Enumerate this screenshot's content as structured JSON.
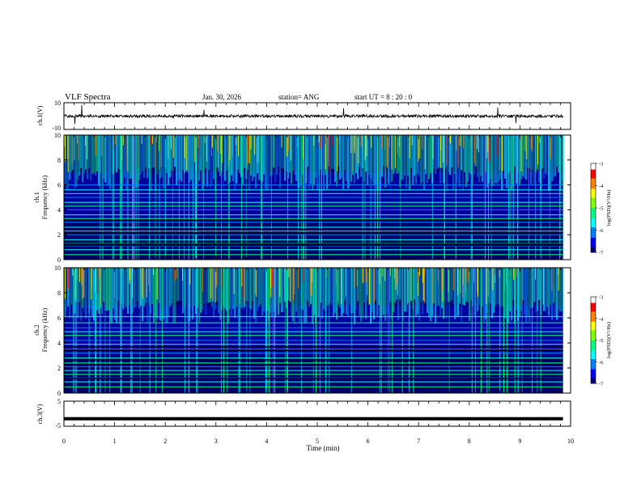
{
  "header": {
    "title": "VLF Spectra",
    "date": "Jan. 30, 2026",
    "station": "station= ANG",
    "start": "start  UT  =   8  : 20 : 0"
  },
  "colors": {
    "background": "#ffffff",
    "axis": "#000000",
    "spectrogram_floor": "#000033",
    "colormap": [
      "#000080",
      "#0000ff",
      "#0080ff",
      "#00ffff",
      "#00ff80",
      "#80ff00",
      "#ffff00",
      "#ff8000",
      "#ff0000",
      "#ffffff"
    ]
  },
  "chart_data": [
    {
      "type": "line",
      "name": "ch1-waveform",
      "ylabel": "ch.1(V)",
      "ylim": [
        -10,
        10
      ],
      "yticks": [
        "10",
        "-10"
      ],
      "baseline": 0,
      "note": "dense noise trace around 0 V with occasional spikes"
    },
    {
      "type": "heatmap",
      "name": "ch1-spectrogram",
      "ylabel": "ch.1 Frequency (kHz)",
      "ylim": [
        0,
        10
      ],
      "yticks": [
        "0",
        "2",
        "4",
        "6",
        "8",
        "10"
      ],
      "colorbar": {
        "label": "log(PSD)(V²/Hz)",
        "range": [
          -7,
          -3
        ],
        "ticks": [
          "-3",
          "-4",
          "-5",
          "-6",
          "-7"
        ]
      },
      "lines_khz": [
        0.4,
        0.8,
        1.1,
        1.3,
        1.6,
        2.0,
        2.3,
        2.6,
        3.0,
        3.3,
        3.6,
        4.0,
        4.3,
        4.6,
        5.0,
        5.3,
        5.6,
        6.0
      ],
      "seed": 7
    },
    {
      "type": "heatmap",
      "name": "ch2-spectrogram",
      "ylabel": "ch.2 Frequency (kHz)",
      "ylim": [
        0,
        10
      ],
      "yticks": [
        "0",
        "2",
        "4",
        "6",
        "8",
        "10"
      ],
      "colorbar": {
        "label": "log(PSD)(V²/Hz)",
        "range": [
          -7,
          -3
        ],
        "ticks": [
          "-3",
          "-4",
          "-5",
          "-6",
          "-7"
        ]
      },
      "lines_khz": [
        0.5,
        0.9,
        1.2,
        1.5,
        1.8,
        2.1,
        2.4,
        2.8,
        3.2,
        3.5,
        3.9,
        4.2,
        4.6,
        4.9,
        5.2,
        5.6,
        6.1
      ],
      "seed": 23
    },
    {
      "type": "line",
      "name": "ch3-waveform",
      "ylabel": "ch.3(V)",
      "ylim": [
        -5,
        5
      ],
      "yticks": [
        "5",
        "-5"
      ],
      "baseline": -2,
      "note": "flat thick trace near -2 V"
    }
  ],
  "time_axis": {
    "xlabel": "Time  (min)",
    "xlim": [
      0,
      10
    ],
    "ticks": [
      "0",
      "1",
      "2",
      "3",
      "4",
      "5",
      "6",
      "7",
      "8",
      "9",
      "10"
    ],
    "data_end_min": 9.85
  }
}
